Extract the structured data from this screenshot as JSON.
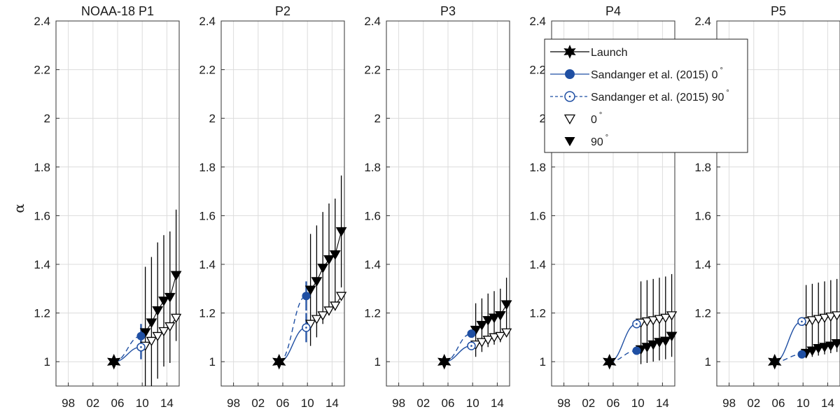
{
  "chart_data": {
    "type": "scatter",
    "ylabel": "α",
    "ylim": [
      0.9,
      2.4
    ],
    "yticks": [
      1,
      1.2,
      1.4,
      1.6,
      1.8,
      2,
      2.2,
      2.4
    ],
    "ytick_labels": [
      "1",
      "1.2",
      "1.4",
      "1.6",
      "1.8",
      "2",
      "2.2",
      "2.4"
    ],
    "xlim": [
      1996,
      2016
    ],
    "xticks": [
      1998,
      2002,
      2006,
      2010,
      2014
    ],
    "xtick_labels": [
      "98",
      "02",
      "06",
      "10",
      "14"
    ],
    "grid": true,
    "legend": {
      "placement": "top-right of panel P4",
      "entries": [
        {
          "label": "Launch",
          "sup": ""
        },
        {
          "label": "Sandanger et al. (2015) 0",
          "sup": "°"
        },
        {
          "label": "Sandanger et al. (2015) 90",
          "sup": "°"
        },
        {
          "label": "0",
          "sup": "°"
        },
        {
          "label": "90",
          "sup": "°"
        }
      ]
    },
    "colors": {
      "sandanger": "#1f4fa3",
      "data": "#000000"
    },
    "launch": {
      "x": 2005.4,
      "y": 1.0
    },
    "x_years": [
      2010.5,
      2011.5,
      2012.5,
      2013.5,
      2014.5,
      2015.5
    ],
    "panels": [
      {
        "title": "NOAA-18 P1",
        "sandanger_0": {
          "x": 2009.8,
          "y": 1.06,
          "err": 0.05
        },
        "sandanger_90": {
          "x": 2009.8,
          "y": 1.105,
          "err": 0.05
        },
        "zero_deg": [
          1.065,
          1.085,
          1.105,
          1.125,
          1.145,
          1.18
        ],
        "zero_err": [
          0.0,
          0.0,
          0.0,
          0.0,
          0.0,
          0.0
        ],
        "ninety_deg": [
          1.12,
          1.16,
          1.21,
          1.25,
          1.265,
          1.355
        ],
        "ninety_err": [
          0.27,
          0.27,
          0.28,
          0.27,
          0.27,
          0.27
        ]
      },
      {
        "title": "P2",
        "sandanger_0": {
          "x": 2009.8,
          "y": 1.14,
          "err": 0.06
        },
        "sandanger_90": {
          "x": 2009.8,
          "y": 1.27,
          "err": 0.06
        },
        "zero_deg": [
          1.155,
          1.175,
          1.19,
          1.21,
          1.23,
          1.27
        ],
        "zero_err": [
          0.0,
          0.0,
          0.0,
          0.0,
          0.0,
          0.0
        ],
        "ninety_deg": [
          1.295,
          1.33,
          1.385,
          1.42,
          1.44,
          1.535
        ],
        "ninety_err": [
          0.23,
          0.23,
          0.23,
          0.23,
          0.23,
          0.23
        ]
      },
      {
        "title": "P3",
        "sandanger_0": {
          "x": 2009.8,
          "y": 1.065,
          "err": 0.0
        },
        "sandanger_90": {
          "x": 2009.8,
          "y": 1.115,
          "err": 0.0
        },
        "zero_deg": [
          1.07,
          1.08,
          1.09,
          1.1,
          1.105,
          1.12
        ],
        "zero_err": [
          0.0,
          0.0,
          0.0,
          0.0,
          0.0,
          0.0
        ],
        "ninety_deg": [
          1.13,
          1.15,
          1.17,
          1.18,
          1.19,
          1.235
        ],
        "ninety_err": [
          0.11,
          0.11,
          0.11,
          0.11,
          0.11,
          0.11
        ]
      },
      {
        "title": "P4",
        "sandanger_0": {
          "x": 2009.8,
          "y": 1.155,
          "err": 0.0
        },
        "sandanger_90": {
          "x": 2009.8,
          "y": 1.045,
          "err": 0.0
        },
        "zero_deg": [
          1.16,
          1.165,
          1.17,
          1.175,
          1.18,
          1.19
        ],
        "zero_err": [
          0.17,
          0.17,
          0.17,
          0.17,
          0.17,
          0.17
        ],
        "ninety_deg": [
          1.05,
          1.06,
          1.07,
          1.08,
          1.085,
          1.105
        ],
        "ninety_err": [
          0.0,
          0.0,
          0.0,
          0.0,
          0.0,
          0.0
        ]
      },
      {
        "title": "P5",
        "sandanger_0": {
          "x": 2009.8,
          "y": 1.165,
          "err": 0.0
        },
        "sandanger_90": {
          "x": 2009.8,
          "y": 1.03,
          "err": 0.0
        },
        "zero_deg": [
          1.165,
          1.17,
          1.175,
          1.18,
          1.185,
          1.19
        ],
        "zero_err": [
          0.15,
          0.15,
          0.15,
          0.15,
          0.15,
          0.15
        ],
        "ninety_deg": [
          1.035,
          1.045,
          1.055,
          1.06,
          1.065,
          1.075
        ],
        "ninety_err": [
          0.0,
          0.0,
          0.0,
          0.0,
          0.0,
          0.0
        ]
      }
    ]
  }
}
